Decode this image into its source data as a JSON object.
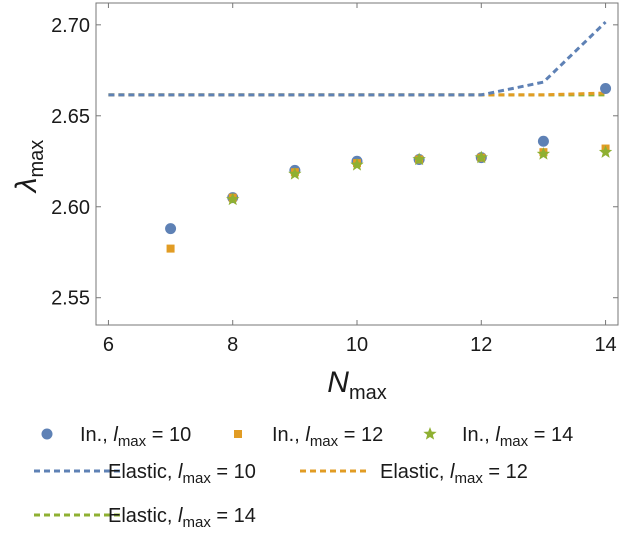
{
  "chart_data": {
    "type": "scatter",
    "xlabel": {
      "base": "N",
      "sub": "max"
    },
    "ylabel": {
      "base": "λ",
      "sub": "max"
    },
    "xlim": [
      5.8,
      14.2
    ],
    "ylim": [
      2.535,
      2.712
    ],
    "xticks": [
      6,
      8,
      10,
      12,
      14
    ],
    "xtick_labels": [
      "6",
      "8",
      "10",
      "12",
      "14"
    ],
    "yticks": [
      2.55,
      2.6,
      2.65,
      2.7
    ],
    "ytick_labels": [
      "2.55",
      "2.60",
      "2.65",
      "2.70"
    ],
    "grid": false,
    "legend_position": "bottom",
    "scatter_series": [
      {
        "name": "In., lmax = 10",
        "label_pre": "In., ",
        "label_var": "l",
        "label_sub": "max",
        "label_post": " = 10",
        "marker": "circle",
        "color": "#5e81b5",
        "x": [
          7,
          8,
          9,
          10,
          11,
          12,
          13,
          14
        ],
        "y": [
          2.588,
          2.605,
          2.62,
          2.625,
          2.626,
          2.627,
          2.636,
          2.665
        ]
      },
      {
        "name": "In., lmax = 12",
        "label_pre": "In., ",
        "label_var": "l",
        "label_sub": "max",
        "label_post": " = 12",
        "marker": "square",
        "color": "#e19c24",
        "x": [
          7,
          8,
          9,
          10,
          11,
          12,
          13,
          14
        ],
        "y": [
          2.577,
          2.605,
          2.619,
          2.624,
          2.626,
          2.627,
          2.63,
          2.632
        ]
      },
      {
        "name": "In., lmax = 14",
        "label_pre": "In., ",
        "label_var": "l",
        "label_sub": "max",
        "label_post": " = 14",
        "marker": "star",
        "color": "#8fb032",
        "x": [
          8,
          9,
          10,
          11,
          12,
          13,
          14
        ],
        "y": [
          2.604,
          2.618,
          2.623,
          2.626,
          2.627,
          2.629,
          2.63
        ]
      }
    ],
    "line_series": [
      {
        "name": "Elastic, lmax = 10",
        "label_pre": "Elastic, ",
        "label_var": "l",
        "label_sub": "max",
        "label_post": " = 10",
        "color": "#5e81b5",
        "x": [
          6,
          12,
          13,
          14
        ],
        "y": [
          2.6615,
          2.6615,
          2.6685,
          2.7015
        ]
      },
      {
        "name": "Elastic, lmax = 12",
        "label_pre": "Elastic, ",
        "label_var": "l",
        "label_sub": "max",
        "label_post": " = 12",
        "color": "#e19c24",
        "x": [
          6,
          13,
          14
        ],
        "y": [
          2.6615,
          2.6615,
          2.6625
        ]
      },
      {
        "name": "Elastic, lmax = 14",
        "label_pre": "Elastic, ",
        "label_var": "l",
        "label_sub": "max",
        "label_post": " = 14",
        "color": "#8fb032",
        "x": [
          6,
          14
        ],
        "y": [
          2.6615,
          2.6615
        ]
      }
    ]
  }
}
